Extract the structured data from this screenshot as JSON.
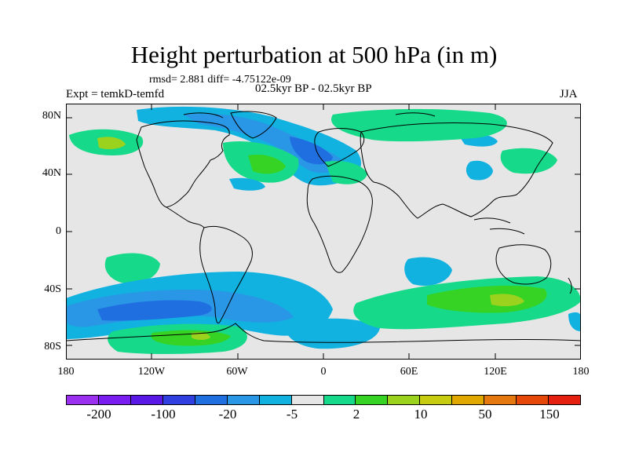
{
  "title": "Height perturbation at 500 hPa (in m)",
  "stats": "rmsd= 2.881 diff= -4.75122e-09",
  "experiment": "Expt = temkD-temfd",
  "period": "02.5kyr BP - 02.5kyr BP",
  "season": "JJA",
  "y_ticks": [
    "80N",
    "40N",
    "0",
    "40S",
    "80S"
  ],
  "x_ticks": [
    "180",
    "120W",
    "60W",
    "0",
    "60E",
    "120E",
    "180"
  ],
  "colorbar": {
    "colors": [
      "#9b30f0",
      "#7a1df0",
      "#5a18e6",
      "#2f3fe0",
      "#1f6fe0",
      "#2a96e6",
      "#11b2e0",
      "#e6e6e6",
      "#16d98a",
      "#36d224",
      "#9ad21e",
      "#c8cc10",
      "#e0a800",
      "#e67810",
      "#e6480a",
      "#e62010"
    ],
    "labels": [
      "-200",
      "-100",
      "-20",
      "-5",
      "2",
      "10",
      "50",
      "150"
    ]
  },
  "map_colors": {
    "background": "#e6e6e6",
    "light_blue": "#11b2e0",
    "mid_blue": "#2a96e6",
    "blue": "#1f6fe0",
    "aqua_green": "#16d98a",
    "green": "#36d224",
    "yellow_green": "#9ad21e"
  }
}
